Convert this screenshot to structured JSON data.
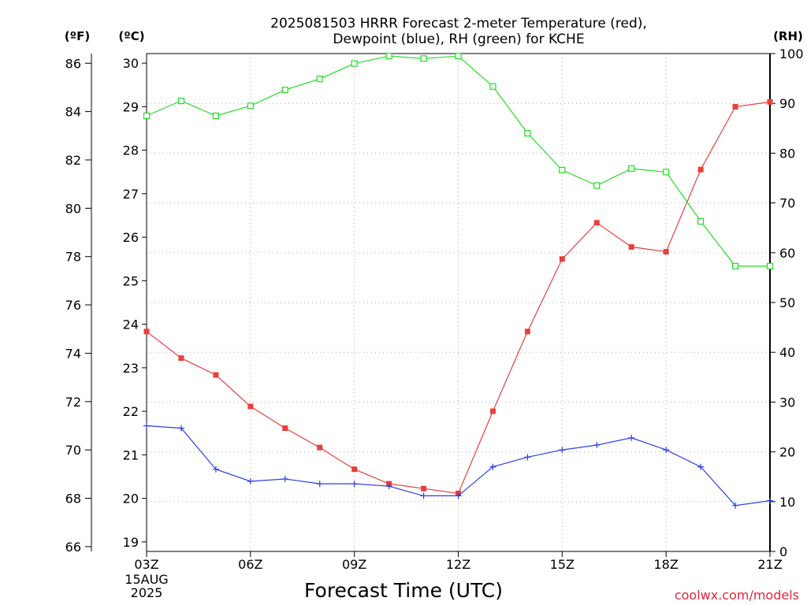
{
  "chart_data": {
    "type": "line",
    "title": "2025081503 HRRR Forecast 2-meter Temperature (red),",
    "subtitle": "Dewpoint (blue), RH (green) for KCHE",
    "xlabel": "Forecast Time (UTC)",
    "credit": "coolwx.com/models",
    "grid": true,
    "x": [
      "03Z",
      "04Z",
      "05Z",
      "06Z",
      "07Z",
      "08Z",
      "09Z",
      "10Z",
      "11Z",
      "12Z",
      "13Z",
      "14Z",
      "15Z",
      "16Z",
      "17Z",
      "18Z",
      "19Z",
      "20Z",
      "21Z"
    ],
    "x_ticks": [
      {
        "label": "03Z",
        "index": 0
      },
      {
        "label": "06Z",
        "index": 3
      },
      {
        "label": "09Z",
        "index": 6
      },
      {
        "label": "12Z",
        "index": 9
      },
      {
        "label": "15Z",
        "index": 12
      },
      {
        "label": "18Z",
        "index": 15
      },
      {
        "label": "21Z",
        "index": 18
      }
    ],
    "x_date_line1": "15AUG",
    "x_date_line2": "2025",
    "axes": {
      "fahrenheit": {
        "unit_label": "(ºF)",
        "range": [
          65.8,
          86.4
        ],
        "ticks": [
          "66",
          "68",
          "70",
          "72",
          "74",
          "76",
          "78",
          "80",
          "82",
          "84",
          "86"
        ]
      },
      "celsius": {
        "unit_label": "(ºC)",
        "range": [
          18.78,
          30.22
        ],
        "ticks": [
          "19",
          "20",
          "21",
          "22",
          "23",
          "24",
          "25",
          "26",
          "27",
          "28",
          "29",
          "30"
        ]
      },
      "rh": {
        "unit_label": "(RH)",
        "range": [
          0,
          100
        ],
        "ticks": [
          "0",
          "10",
          "20",
          "30",
          "40",
          "50",
          "60",
          "70",
          "80",
          "90",
          "100"
        ]
      }
    },
    "series": [
      {
        "name": "Temperature",
        "color": "#e8403c",
        "marker": "filled-square",
        "axis": "fahrenheit",
        "values": [
          74.9,
          73.8,
          73.1,
          71.8,
          70.9,
          70.1,
          69.2,
          68.6,
          68.4,
          68.2,
          71.6,
          74.9,
          77.9,
          79.4,
          78.4,
          78.2,
          81.6,
          84.2,
          84.4
        ]
      },
      {
        "name": "Dewpoint",
        "color": "#2b3fe8",
        "marker": "plus",
        "axis": "fahrenheit",
        "values": [
          71.0,
          70.9,
          69.2,
          68.7,
          68.8,
          68.6,
          68.6,
          68.5,
          68.1,
          68.1,
          69.3,
          69.7,
          70.0,
          70.2,
          70.5,
          70.0,
          69.3,
          67.7,
          67.9
        ]
      },
      {
        "name": "RH",
        "color": "#22dd22",
        "marker": "open-square",
        "axis": "rh",
        "values": [
          87.5,
          90.5,
          87.5,
          89.5,
          92.7,
          94.9,
          98.0,
          99.5,
          99.0,
          99.5,
          93.4,
          84.0,
          76.6,
          73.5,
          76.9,
          76.2,
          66.3,
          57.3,
          57.3
        ]
      }
    ]
  }
}
